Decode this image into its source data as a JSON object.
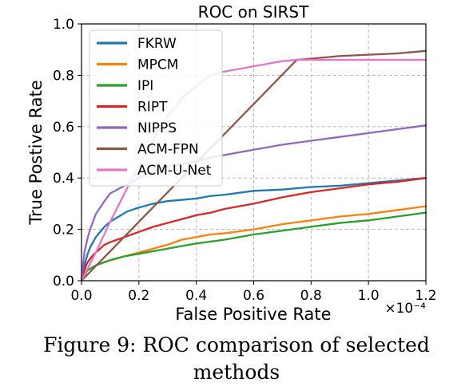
{
  "caption": "Figure 9: ROC comparison of selected methods",
  "chart_data": {
    "type": "line",
    "title": "ROC on SIRST",
    "xlabel": "False Positive Rate",
    "ylabel": "True Postive Rate",
    "x_offset_label": "×10⁻⁴",
    "xlim": [
      0,
      1.2
    ],
    "ylim": [
      0,
      1.0
    ],
    "xticks": [
      "0.0",
      "0.2",
      "0.4",
      "0.6",
      "0.8",
      "1.0",
      "1.2"
    ],
    "yticks": [
      "0.0",
      "0.2",
      "0.4",
      "0.6",
      "0.8",
      "1.0"
    ],
    "grid": true,
    "legend_position": "upper-left",
    "series": [
      {
        "name": "FKRW",
        "color": "#1f77b4",
        "x": [
          0,
          0.01,
          0.02,
          0.03,
          0.05,
          0.08,
          0.1,
          0.13,
          0.16,
          0.2,
          0.25,
          0.3,
          0.35,
          0.4,
          0.45,
          0.5,
          0.6,
          0.7,
          0.8,
          0.9,
          1.0,
          1.1,
          1.2
        ],
        "y": [
          0,
          0.06,
          0.1,
          0.13,
          0.17,
          0.21,
          0.23,
          0.25,
          0.27,
          0.285,
          0.3,
          0.31,
          0.315,
          0.32,
          0.33,
          0.335,
          0.35,
          0.355,
          0.365,
          0.37,
          0.38,
          0.39,
          0.4
        ]
      },
      {
        "name": "MPCM",
        "color": "#ff7f0e",
        "x": [
          0,
          0.02,
          0.05,
          0.1,
          0.15,
          0.2,
          0.25,
          0.3,
          0.35,
          0.4,
          0.45,
          0.5,
          0.6,
          0.7,
          0.8,
          0.9,
          1.0,
          1.1,
          1.2
        ],
        "y": [
          0,
          0.04,
          0.06,
          0.08,
          0.095,
          0.11,
          0.125,
          0.14,
          0.16,
          0.17,
          0.18,
          0.185,
          0.2,
          0.22,
          0.235,
          0.25,
          0.26,
          0.275,
          0.29
        ]
      },
      {
        "name": "IPI",
        "color": "#2ca02c",
        "x": [
          0,
          0.02,
          0.05,
          0.1,
          0.15,
          0.2,
          0.25,
          0.3,
          0.35,
          0.4,
          0.5,
          0.6,
          0.7,
          0.8,
          0.9,
          1.0,
          1.1,
          1.2
        ],
        "y": [
          0,
          0.04,
          0.06,
          0.08,
          0.095,
          0.105,
          0.115,
          0.125,
          0.135,
          0.145,
          0.16,
          0.18,
          0.195,
          0.21,
          0.225,
          0.235,
          0.25,
          0.265
        ]
      },
      {
        "name": "RIPT",
        "color": "#d62728",
        "x": [
          0,
          0.01,
          0.02,
          0.04,
          0.06,
          0.08,
          0.1,
          0.15,
          0.2,
          0.25,
          0.3,
          0.35,
          0.4,
          0.45,
          0.5,
          0.6,
          0.7,
          0.8,
          0.9,
          1.0,
          1.1,
          1.2
        ],
        "y": [
          0,
          0.04,
          0.07,
          0.1,
          0.12,
          0.14,
          0.15,
          0.17,
          0.19,
          0.21,
          0.225,
          0.24,
          0.255,
          0.265,
          0.28,
          0.3,
          0.325,
          0.345,
          0.36,
          0.375,
          0.385,
          0.4
        ]
      },
      {
        "name": "NIPPS",
        "color": "#9467bd",
        "x": [
          0,
          0.005,
          0.01,
          0.02,
          0.03,
          0.05,
          0.08,
          0.1,
          0.15,
          0.2,
          0.25,
          0.3,
          0.35,
          0.4,
          0.45,
          0.5,
          0.6,
          0.7,
          0.8,
          0.9,
          1.0,
          1.1,
          1.2
        ],
        "y": [
          0,
          0.06,
          0.11,
          0.16,
          0.2,
          0.26,
          0.31,
          0.34,
          0.37,
          0.4,
          0.425,
          0.445,
          0.455,
          0.465,
          0.48,
          0.49,
          0.51,
          0.53,
          0.545,
          0.56,
          0.575,
          0.59,
          0.605
        ]
      },
      {
        "name": "ACM-FPN",
        "color": "#8c564b",
        "x": [
          0,
          0.75,
          0.8,
          0.9,
          1.0,
          1.1,
          1.2
        ],
        "y": [
          0,
          0.86,
          0.865,
          0.875,
          0.88,
          0.885,
          0.895
        ]
      },
      {
        "name": "ACM-U-Net",
        "color": "#e377c2",
        "x": [
          0,
          0.05,
          0.1,
          0.15,
          0.2,
          0.25,
          0.3,
          0.35,
          0.4,
          0.45,
          0.5,
          0.55,
          0.6,
          0.65,
          0.7,
          0.75,
          0.8,
          1.0,
          1.2
        ],
        "y": [
          0,
          0.11,
          0.23,
          0.34,
          0.45,
          0.55,
          0.64,
          0.71,
          0.76,
          0.8,
          0.815,
          0.825,
          0.835,
          0.845,
          0.855,
          0.86,
          0.86,
          0.86,
          0.86
        ]
      }
    ]
  }
}
